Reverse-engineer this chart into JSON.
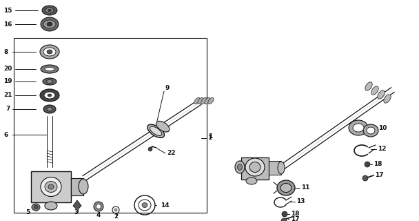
{
  "bg_color": "#ffffff",
  "line_color": "#111111",
  "fig_width": 6.08,
  "fig_height": 3.2,
  "dpi": 100,
  "lw": 0.7
}
